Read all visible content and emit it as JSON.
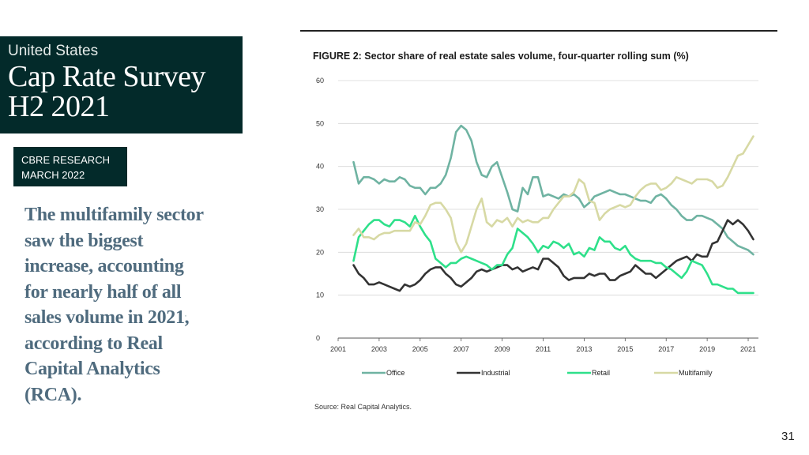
{
  "report": {
    "region": "United States",
    "title_line1": "Cap Rate Survey",
    "title_line2": "H2 2021",
    "tag_line1": "CBRE RESEARCH",
    "tag_line2": "MARCH 2022",
    "quote": "The multifamily sector saw the biggest increase, accounting for nearly half of all sales volume in 2021, according to Real Capital Analytics (RCA).",
    "page_number": "31"
  },
  "figure": {
    "title": "FIGURE 2: Sector share of real estate sales volume, four-quarter rolling sum (%)",
    "source": "Source: Real Capital Analytics."
  },
  "chart_data": {
    "type": "line",
    "title": "FIGURE 2: Sector share of real estate sales volume, four-quarter rolling sum (%)",
    "xlabel": "",
    "ylabel": "",
    "xlim": [
      2001,
      2021.5
    ],
    "ylim": [
      0,
      60
    ],
    "x_ticks": [
      "2001",
      "2003",
      "2005",
      "2007",
      "2009",
      "2011",
      "2013",
      "2015",
      "2017",
      "2019",
      "2021"
    ],
    "y_ticks": [
      "0",
      "10",
      "20",
      "30",
      "40",
      "50",
      "60"
    ],
    "grid": "horizontal",
    "legend_position": "bottom",
    "x": [
      2001.75,
      2002,
      2002.25,
      2002.5,
      2002.75,
      2003,
      2003.25,
      2003.5,
      2003.75,
      2004,
      2004.25,
      2004.5,
      2004.75,
      2005,
      2005.25,
      2005.5,
      2005.75,
      2006,
      2006.25,
      2006.5,
      2006.75,
      2007,
      2007.25,
      2007.5,
      2007.75,
      2008,
      2008.25,
      2008.5,
      2008.75,
      2009,
      2009.25,
      2009.5,
      2009.75,
      2010,
      2010.25,
      2010.5,
      2010.75,
      2011,
      2011.25,
      2011.5,
      2011.75,
      2012,
      2012.25,
      2012.5,
      2012.75,
      2013,
      2013.25,
      2013.5,
      2013.75,
      2014,
      2014.25,
      2014.5,
      2014.75,
      2015,
      2015.25,
      2015.5,
      2015.75,
      2016,
      2016.25,
      2016.5,
      2016.75,
      2017,
      2017.25,
      2017.5,
      2017.75,
      2018,
      2018.25,
      2018.5,
      2018.75,
      2019,
      2019.25,
      2019.5,
      2019.75,
      2020,
      2020.25,
      2020.5,
      2020.75,
      2021,
      2021.25
    ],
    "series": [
      {
        "name": "Office",
        "color": "#6fb3a2",
        "values": [
          41,
          36,
          37.5,
          37.5,
          37,
          36,
          37,
          36.5,
          36.5,
          37.5,
          37,
          35.5,
          35,
          35,
          33.5,
          35,
          35,
          36,
          38,
          42,
          48,
          49.5,
          48.5,
          46,
          41,
          38,
          37.5,
          40,
          41,
          37.5,
          34,
          30,
          29.5,
          35,
          33.5,
          37.5,
          37.5,
          33,
          33.5,
          33,
          32.5,
          33.5,
          33,
          33.5,
          32.5,
          30.5,
          31.5,
          33,
          33.5,
          34,
          34.5,
          34,
          33.5,
          33.5,
          33,
          32.5,
          32,
          32,
          31.5,
          33,
          33.5,
          32.5,
          31,
          30,
          28.5,
          27.5,
          27.5,
          28.5,
          28.5,
          28,
          27.5,
          26.5,
          25.5,
          23.5,
          22.5,
          21.5,
          21,
          20.5,
          19.5
        ]
      },
      {
        "name": "Industrial",
        "color": "#333333",
        "values": [
          17,
          15,
          14,
          12.5,
          12.5,
          13,
          12.5,
          12,
          11.5,
          11,
          12.5,
          12,
          12.5,
          13.5,
          15,
          16,
          16.5,
          16.5,
          15,
          14,
          12.5,
          12,
          13,
          14,
          15.5,
          16,
          15.5,
          16,
          16.5,
          17,
          17,
          16,
          16.5,
          15.5,
          16,
          16.5,
          16,
          18.5,
          18.5,
          17.5,
          16.5,
          14.5,
          13.5,
          14,
          14,
          14,
          15,
          14.5,
          15,
          15,
          13.5,
          13.5,
          14.5,
          15,
          15.5,
          17,
          16,
          15,
          15,
          14,
          15,
          16,
          17,
          18,
          18.5,
          19,
          18,
          19.5,
          19,
          19,
          22,
          22.5,
          25,
          27.5,
          26.5,
          27.5,
          26.5,
          25,
          23
        ]
      },
      {
        "name": "Retail",
        "color": "#2ee08a",
        "values": [
          18,
          23.5,
          25,
          26.5,
          27.5,
          27.5,
          26.5,
          26,
          27.5,
          27.5,
          27,
          26,
          28.5,
          26,
          24,
          22.5,
          18.5,
          17.5,
          16.5,
          17.5,
          17.5,
          18.5,
          19,
          18.5,
          18,
          17.5,
          17,
          16,
          17,
          17,
          19.5,
          21,
          25.5,
          24.5,
          23.5,
          22,
          20,
          21.5,
          21,
          22.5,
          22,
          21,
          22,
          19.5,
          20,
          19,
          21,
          20.5,
          23.5,
          22.5,
          22.5,
          21,
          20.5,
          21.5,
          19.5,
          18.5,
          18,
          18,
          18,
          17.5,
          17.5,
          16.5,
          16,
          15,
          14,
          15.5,
          18,
          17.5,
          17,
          15,
          12.5,
          12.5,
          12,
          11.5,
          11.5,
          10.5,
          10.5,
          10.5,
          10.5
        ]
      },
      {
        "name": "Multifamily",
        "color": "#d7d9a4",
        "values": [
          24,
          25.5,
          23.5,
          23.5,
          23,
          24,
          24.5,
          24.5,
          25,
          25,
          25,
          25,
          27,
          26.5,
          28.5,
          31,
          31.5,
          31.5,
          30,
          28,
          22.5,
          20,
          22,
          26,
          30,
          32.5,
          27,
          26,
          27.5,
          27,
          28,
          26,
          28,
          27,
          27.5,
          27,
          27,
          28,
          28,
          30,
          31.5,
          33,
          33,
          34,
          37,
          36,
          32,
          31.5,
          27.5,
          29,
          30,
          30.5,
          31,
          30.5,
          31,
          33,
          34.5,
          35.5,
          36,
          36,
          34.5,
          35,
          36,
          37.5,
          37,
          36.5,
          36,
          37,
          37,
          37,
          36.5,
          35,
          35.5,
          37.5,
          40,
          42.5,
          43,
          45,
          47
        ]
      }
    ]
  }
}
